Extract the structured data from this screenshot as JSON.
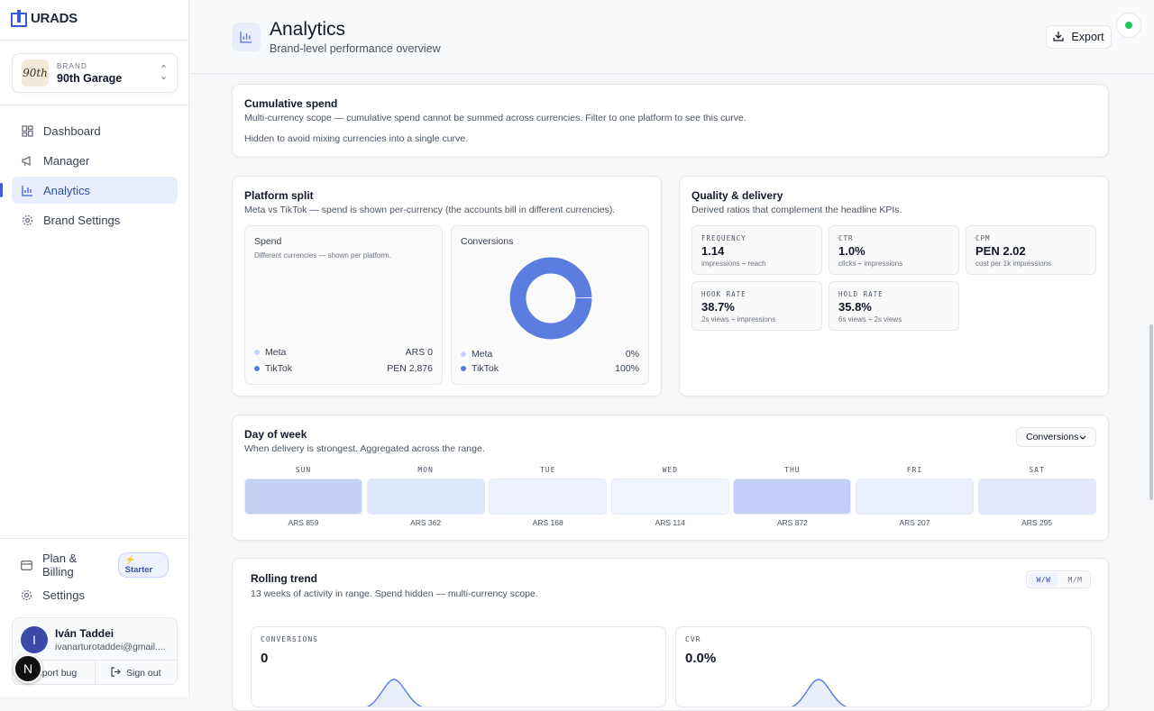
{
  "app": {
    "logo_text": "URADS"
  },
  "brand": {
    "label": "BRAND",
    "name": "90th Garage",
    "logo_text": "90th"
  },
  "nav": [
    {
      "label": "Dashboard",
      "icon": "grid-icon"
    },
    {
      "label": "Manager",
      "icon": "megaphone-icon"
    },
    {
      "label": "Analytics",
      "icon": "bar-chart-icon",
      "active": true
    },
    {
      "label": "Brand Settings",
      "icon": "gear-icon"
    }
  ],
  "plan": {
    "label": "Plan & Billing",
    "badge": "Starter"
  },
  "settings_label": "Settings",
  "user": {
    "initial": "I",
    "name": "Iván Taddei",
    "email": "ivanarturotaddei@gmail....",
    "report_bug": "Report bug",
    "sign_out": "Sign out",
    "floating_initial": "N"
  },
  "header": {
    "title": "Analytics",
    "subtitle": "Brand-level performance overview",
    "export_label": "Export",
    "status_color": "#22c55e"
  },
  "cumulative": {
    "title": "Cumulative spend",
    "subtitle": "Multi-currency scope — cumulative spend cannot be summed across currencies. Filter to one platform to see this curve.",
    "note": "Hidden to avoid mixing currencies into a single curve."
  },
  "platform_split": {
    "title": "Platform split",
    "subtitle": "Meta vs TikTok — spend is shown per-currency (the accounts bill in different currencies).",
    "spend": {
      "title": "Spend",
      "desc": "Different currencies — shown per platform.",
      "rows": [
        {
          "name": "Meta",
          "value": "ARS 0",
          "color": "#c7d2fe"
        },
        {
          "name": "TikTok",
          "value": "PEN 2,876",
          "color": "#5b7de0"
        }
      ]
    },
    "conversions": {
      "title": "Conversions",
      "rows": [
        {
          "name": "Meta",
          "value": "0%",
          "color": "#c7d2fe"
        },
        {
          "name": "TikTok",
          "value": "100%",
          "color": "#5b7de0"
        }
      ]
    }
  },
  "chart_data": {
    "type": "pie",
    "title": "Conversions",
    "categories": [
      "Meta",
      "TikTok"
    ],
    "values": [
      0,
      100
    ],
    "colors": [
      "#c7d2fe",
      "#5b7de0"
    ]
  },
  "quality": {
    "title": "Quality & delivery",
    "subtitle": "Derived ratios that complement the headline KPIs.",
    "metrics": [
      {
        "label": "FREQUENCY",
        "value": "1.14",
        "desc": "impressions ÷ reach"
      },
      {
        "label": "CTR",
        "value": "1.0%",
        "desc": "clicks ÷ impressions"
      },
      {
        "label": "CPM",
        "value": "PEN 2.02",
        "desc": "cost per 1k impressions"
      },
      {
        "label": "HOOK RATE",
        "value": "38.7%",
        "desc": "2s views ÷ impressions"
      },
      {
        "label": "HOLD RATE",
        "value": "35.8%",
        "desc": "6s views ÷ 2s views"
      }
    ]
  },
  "day_of_week": {
    "title": "Day of week",
    "subtitle": "When delivery is strongest. Aggregated across the range.",
    "select_value": "Conversions",
    "days": [
      {
        "day": "SUN",
        "value": "ARS 859",
        "color": "#c3d1f7"
      },
      {
        "day": "MON",
        "value": "ARS 362",
        "color": "#dde6fb"
      },
      {
        "day": "TUE",
        "value": "ARS 168",
        "color": "#edf2fd"
      },
      {
        "day": "WED",
        "value": "ARS 114",
        "color": "#f1f5fe"
      },
      {
        "day": "THU",
        "value": "ARS 872",
        "color": "#c1cff7"
      },
      {
        "day": "FRI",
        "value": "ARS 207",
        "color": "#ebf0fd"
      },
      {
        "day": "SAT",
        "value": "ARS 295",
        "color": "#e2e9fc"
      }
    ]
  },
  "rolling": {
    "title": "Rolling trend",
    "subtitle": "13 weeks of activity in range. Spend hidden — multi-currency scope.",
    "toggle": [
      "W/W",
      "M/M"
    ],
    "cards": [
      {
        "label": "CONVERSIONS",
        "value": "0"
      },
      {
        "label": "CVR",
        "value": "0.0%"
      }
    ]
  }
}
